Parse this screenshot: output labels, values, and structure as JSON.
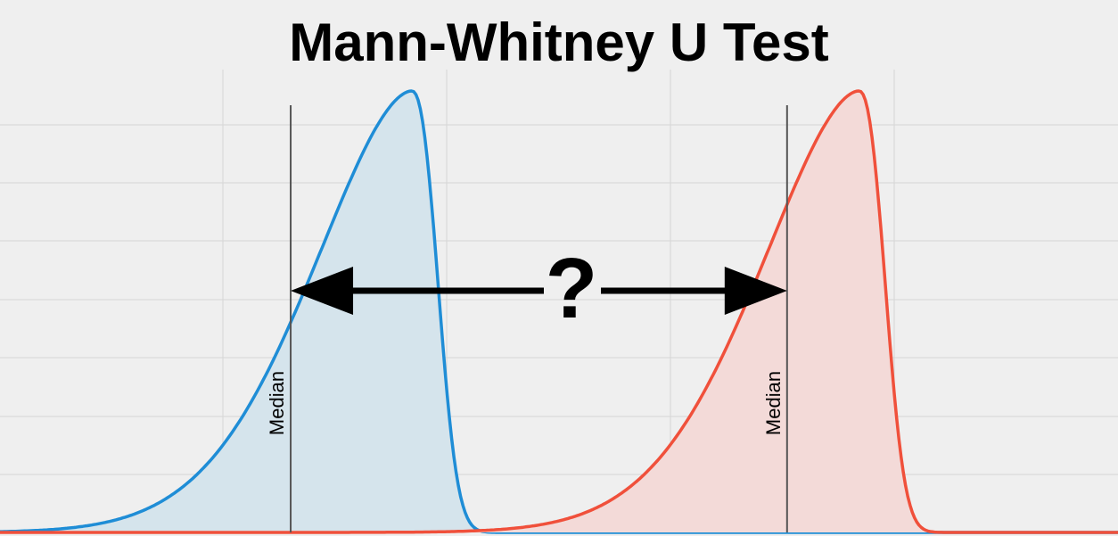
{
  "chart_data": {
    "type": "area",
    "title": "Mann-Whitney U Test",
    "xlabel": "",
    "ylabel": "",
    "grid": true,
    "series": [
      {
        "color": "#1f8dd6",
        "fill": "#d5e4ec",
        "mode": 9.2,
        "peak": 1.0,
        "median": 6.5,
        "median_label": "Median"
      },
      {
        "color": "#f0503b",
        "fill": "#f3dad8",
        "mode": 19.2,
        "peak": 1.0,
        "median": 17.6,
        "median_label": "Median"
      }
    ],
    "annotation": {
      "label": "?",
      "from_median": 6.5,
      "to_median": 17.6
    }
  }
}
